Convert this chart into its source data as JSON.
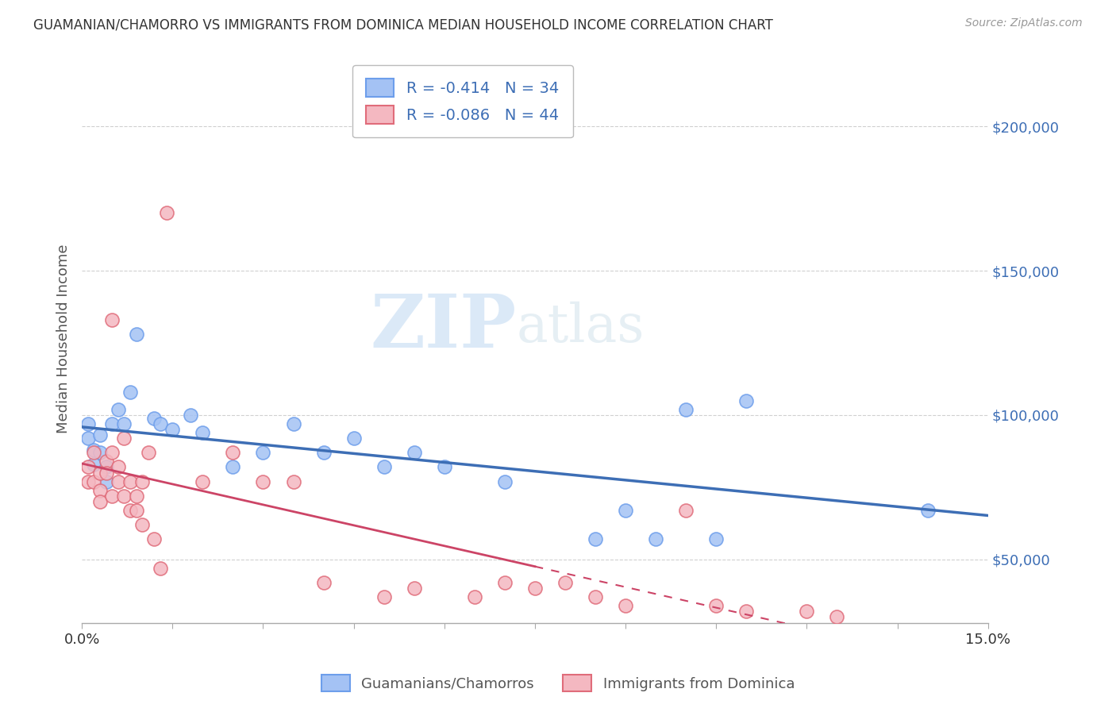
{
  "title": "GUAMANIAN/CHAMORRO VS IMMIGRANTS FROM DOMINICA MEDIAN HOUSEHOLD INCOME CORRELATION CHART",
  "source": "Source: ZipAtlas.com",
  "ylabel": "Median Household Income",
  "watermark_zip": "ZIP",
  "watermark_atlas": "atlas",
  "blue_R": "-0.414",
  "blue_N": "34",
  "pink_R": "-0.086",
  "pink_N": "44",
  "legend_label_blue": "Guamanians/Chamorros",
  "legend_label_pink": "Immigrants from Dominica",
  "blue_color": "#a4c2f4",
  "pink_color": "#f4b8c1",
  "blue_edge_color": "#6d9eeb",
  "pink_edge_color": "#e06c7a",
  "blue_line_color": "#3d6eb5",
  "pink_line_color": "#cc4466",
  "xmin": 0.0,
  "xmax": 0.15,
  "ymin": 28000,
  "ymax": 225000,
  "yticks": [
    50000,
    100000,
    150000,
    200000
  ],
  "ytick_labels": [
    "$50,000",
    "$100,000",
    "$150,000",
    "$200,000"
  ],
  "grid_color": "#d0d0d0",
  "background_color": "#ffffff",
  "title_color": "#333333",
  "source_color": "#999999",
  "blue_x": [
    0.001,
    0.001,
    0.002,
    0.002,
    0.003,
    0.003,
    0.004,
    0.004,
    0.005,
    0.006,
    0.007,
    0.008,
    0.009,
    0.012,
    0.013,
    0.015,
    0.018,
    0.02,
    0.025,
    0.03,
    0.035,
    0.04,
    0.045,
    0.05,
    0.055,
    0.06,
    0.07,
    0.085,
    0.09,
    0.095,
    0.1,
    0.105,
    0.11,
    0.14
  ],
  "blue_y": [
    97000,
    92000,
    88000,
    83000,
    93000,
    87000,
    82000,
    77000,
    97000,
    102000,
    97000,
    108000,
    128000,
    99000,
    97000,
    95000,
    100000,
    94000,
    82000,
    87000,
    97000,
    87000,
    92000,
    82000,
    87000,
    82000,
    77000,
    57000,
    67000,
    57000,
    102000,
    57000,
    105000,
    67000
  ],
  "pink_x": [
    0.001,
    0.001,
    0.002,
    0.002,
    0.003,
    0.003,
    0.003,
    0.004,
    0.004,
    0.005,
    0.005,
    0.005,
    0.006,
    0.006,
    0.007,
    0.007,
    0.008,
    0.008,
    0.009,
    0.009,
    0.01,
    0.01,
    0.011,
    0.012,
    0.013,
    0.014,
    0.02,
    0.025,
    0.03,
    0.035,
    0.04,
    0.05,
    0.055,
    0.065,
    0.07,
    0.075,
    0.08,
    0.085,
    0.09,
    0.1,
    0.105,
    0.11,
    0.12,
    0.125
  ],
  "pink_y": [
    82000,
    77000,
    87000,
    77000,
    80000,
    74000,
    70000,
    84000,
    80000,
    133000,
    87000,
    72000,
    82000,
    77000,
    92000,
    72000,
    67000,
    77000,
    72000,
    67000,
    77000,
    62000,
    87000,
    57000,
    47000,
    170000,
    77000,
    87000,
    77000,
    77000,
    42000,
    37000,
    40000,
    37000,
    42000,
    40000,
    42000,
    37000,
    34000,
    67000,
    34000,
    32000,
    32000,
    30000
  ],
  "pink_trend_xmax": 0.075
}
